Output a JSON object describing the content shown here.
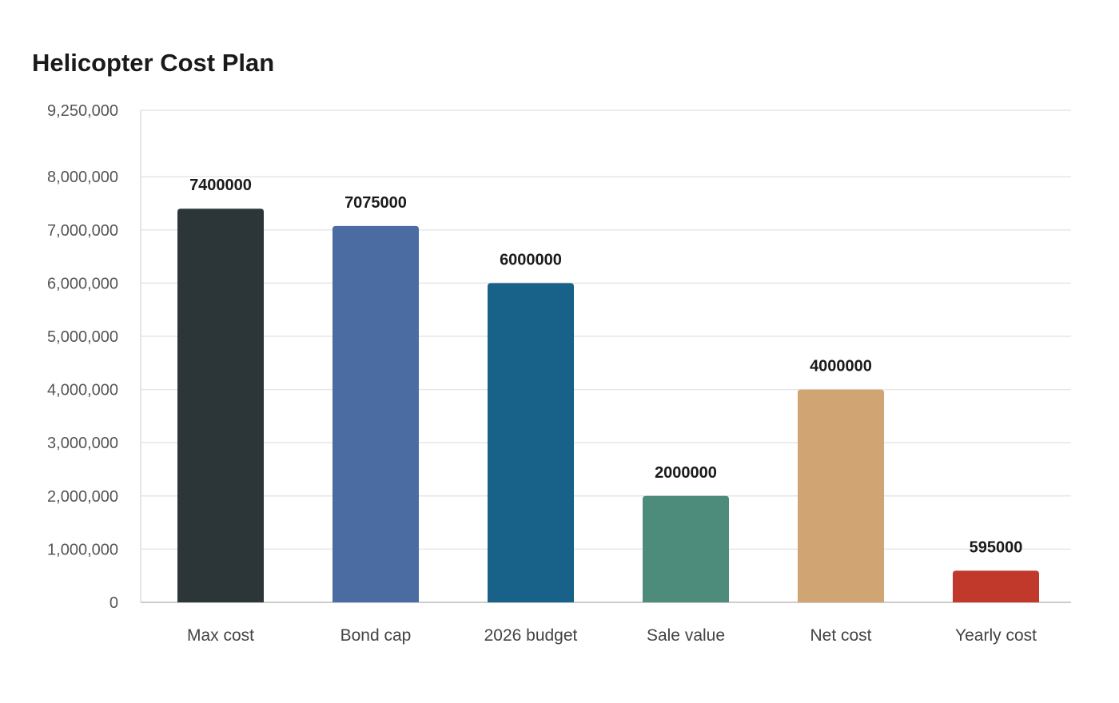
{
  "chart_data": {
    "type": "bar",
    "title": "Helicopter Cost Plan",
    "xlabel": "",
    "ylabel": "",
    "categories": [
      "Max cost",
      "Bond cap",
      "2026 budget",
      "Sale value",
      "Net cost",
      "Yearly cost"
    ],
    "values": [
      7400000,
      7075000,
      6000000,
      2000000,
      4000000,
      595000
    ],
    "data_labels": [
      "7400000",
      "7075000",
      "6000000",
      "2000000",
      "4000000",
      "595000"
    ],
    "colors": [
      "#2c3538",
      "#4a6ca3",
      "#186189",
      "#4d8c7b",
      "#d1a473",
      "#c0392b"
    ],
    "ylim": [
      0,
      9250000
    ],
    "yticks": [
      0,
      1000000,
      2000000,
      3000000,
      4000000,
      5000000,
      6000000,
      7000000,
      8000000,
      9250000
    ],
    "ytick_labels": [
      "0",
      "1,000,000",
      "2,000,000",
      "3,000,000",
      "4,000,000",
      "5,000,000",
      "6,000,000",
      "7,000,000",
      "8,000,000",
      "9,250,000"
    ],
    "grid": true,
    "legend": "none"
  }
}
